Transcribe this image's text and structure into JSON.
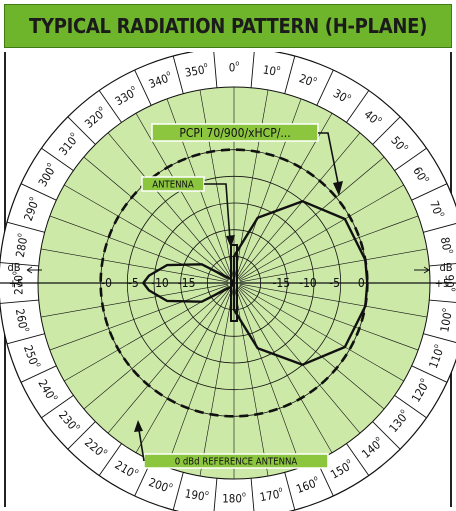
{
  "title": "TYPICAL RADIATION PATTERN (H-PLANE)",
  "colors": {
    "title_bg": "#6fb52c",
    "plot_fill": "#cde9a8",
    "label_box": "#8cc63f",
    "line": "#111111"
  },
  "chart_data": {
    "type": "polar",
    "title": "TYPICAL RADIATION PATTERN (H-PLANE)",
    "angle_labels": [
      "0",
      "10",
      "20",
      "30",
      "40",
      "50",
      "60",
      "70",
      "80",
      "90",
      "100",
      "110",
      "120",
      "130",
      "140",
      "150",
      "160",
      "170",
      "180",
      "190",
      "200",
      "210",
      "220",
      "230",
      "240",
      "250",
      "260",
      "270",
      "280",
      "290",
      "300",
      "310",
      "320",
      "330",
      "340",
      "350"
    ],
    "angle_unit": "o",
    "radial_ticks": [
      "-0",
      "-5",
      "-10",
      "-15",
      "-15",
      "-10",
      "-5",
      "0"
    ],
    "side_labels": {
      "left_db": "dB",
      "left_plus": "+5",
      "right_db": "dB",
      "right_plus": "+5"
    },
    "series": [
      {
        "name": "PCPI 70/900/xHCP/...",
        "angle_deg": [
          0,
          20,
          40,
          60,
          80,
          90,
          100,
          120,
          140,
          160,
          180,
          200,
          220,
          240,
          255,
          265,
          270,
          275,
          285,
          300,
          320,
          340
        ],
        "gain_dbd": [
          -20,
          -12,
          -5,
          -1,
          0,
          0,
          0,
          -1,
          -5,
          -12,
          -20,
          -25,
          -24,
          -18,
          -12,
          -9,
          -8,
          -9,
          -12,
          -18,
          -24,
          -25
        ]
      }
    ],
    "reference": {
      "name": "0 dBd REFERENCE ANTENNA",
      "gain_dbd": 0,
      "style": "dashed"
    },
    "annotations": [
      "PCPI 70/900/xHCP/...",
      "ANTENNA",
      "0 dBd REFERENCE ANTENNA"
    ]
  }
}
